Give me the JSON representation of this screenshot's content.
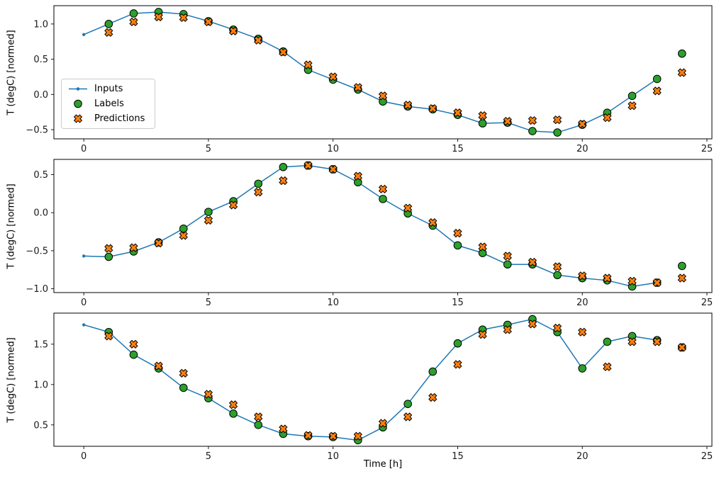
{
  "figure": {
    "xlabel": "Time [h]",
    "ylabel": "T (degC) [normed]",
    "xlim": [
      -1.2,
      25.2
    ],
    "xticks": [
      0,
      5,
      10,
      15,
      20,
      25
    ],
    "colors": {
      "inputs": "#1f77b4",
      "labels": "#2ca02c",
      "predictions": "#ff7f0e",
      "edge": "#000000",
      "spine": "#000000",
      "background": "#ffffff"
    },
    "legend": {
      "items": [
        {
          "label": "Inputs"
        },
        {
          "label": "Labels"
        },
        {
          "label": "Predictions"
        }
      ]
    }
  },
  "chart_data": [
    {
      "type": "line",
      "ylabel": "T (degC) [normed]",
      "ylim": [
        -0.63,
        1.26
      ],
      "yticks": [
        1.0,
        0.5,
        0.0,
        -0.5
      ],
      "series": [
        {
          "name": "Inputs",
          "x": [
            0,
            1,
            2,
            3,
            4,
            5,
            6,
            7,
            8,
            9,
            10,
            11,
            12,
            13,
            14,
            15,
            16,
            17,
            18,
            19,
            20,
            21,
            22,
            23
          ],
          "y": [
            0.85,
            1.0,
            1.15,
            1.17,
            1.14,
            1.04,
            0.92,
            0.79,
            0.61,
            0.35,
            0.21,
            0.07,
            -0.1,
            -0.17,
            -0.21,
            -0.29,
            -0.41,
            -0.4,
            -0.52,
            -0.54,
            -0.43,
            -0.26,
            -0.02,
            0.22
          ]
        },
        {
          "name": "Labels",
          "x": [
            1,
            2,
            3,
            4,
            5,
            6,
            7,
            8,
            9,
            10,
            11,
            12,
            13,
            14,
            15,
            16,
            17,
            18,
            19,
            20,
            21,
            22,
            23,
            24
          ],
          "y": [
            1.0,
            1.15,
            1.17,
            1.14,
            1.04,
            0.92,
            0.79,
            0.61,
            0.35,
            0.21,
            0.07,
            -0.1,
            -0.17,
            -0.21,
            -0.29,
            -0.41,
            -0.4,
            -0.52,
            -0.54,
            -0.43,
            -0.26,
            -0.02,
            0.22,
            0.58
          ]
        },
        {
          "name": "Predictions",
          "x": [
            1,
            2,
            3,
            4,
            5,
            6,
            7,
            8,
            9,
            10,
            11,
            12,
            13,
            14,
            15,
            16,
            17,
            18,
            19,
            20,
            21,
            22,
            23,
            24
          ],
          "y": [
            0.88,
            1.03,
            1.1,
            1.09,
            1.03,
            0.9,
            0.77,
            0.6,
            0.42,
            0.25,
            0.1,
            -0.02,
            -0.15,
            -0.2,
            -0.26,
            -0.3,
            -0.38,
            -0.37,
            -0.36,
            -0.42,
            -0.33,
            -0.16,
            0.05,
            0.31
          ]
        }
      ]
    },
    {
      "type": "line",
      "ylabel": "T (degC) [normed]",
      "ylim": [
        -1.05,
        0.7
      ],
      "yticks": [
        0.5,
        0.0,
        -0.5,
        -1.0
      ],
      "series": [
        {
          "name": "Inputs",
          "x": [
            0,
            1,
            2,
            3,
            4,
            5,
            6,
            7,
            8,
            9,
            10,
            11,
            12,
            13,
            14,
            15,
            16,
            17,
            18,
            19,
            20,
            21,
            22,
            23
          ],
          "y": [
            -0.57,
            -0.58,
            -0.51,
            -0.39,
            -0.21,
            0.01,
            0.15,
            0.38,
            0.6,
            0.62,
            0.57,
            0.4,
            0.18,
            -0.01,
            -0.17,
            -0.43,
            -0.53,
            -0.68,
            -0.68,
            -0.82,
            -0.86,
            -0.89,
            -0.97,
            -0.92
          ]
        },
        {
          "name": "Labels",
          "x": [
            1,
            2,
            3,
            4,
            5,
            6,
            7,
            8,
            9,
            10,
            11,
            12,
            13,
            14,
            15,
            16,
            17,
            18,
            19,
            20,
            21,
            22,
            23,
            24
          ],
          "y": [
            -0.58,
            -0.51,
            -0.39,
            -0.21,
            0.01,
            0.15,
            0.38,
            0.6,
            0.62,
            0.57,
            0.4,
            0.18,
            -0.01,
            -0.17,
            -0.43,
            -0.53,
            -0.68,
            -0.68,
            -0.82,
            -0.86,
            -0.89,
            -0.97,
            -0.92,
            -0.7
          ]
        },
        {
          "name": "Predictions",
          "x": [
            1,
            2,
            3,
            4,
            5,
            6,
            7,
            8,
            9,
            10,
            11,
            12,
            13,
            14,
            15,
            16,
            17,
            18,
            19,
            20,
            21,
            22,
            23,
            24
          ],
          "y": [
            -0.47,
            -0.46,
            -0.4,
            -0.3,
            -0.1,
            0.1,
            0.27,
            0.42,
            0.62,
            0.57,
            0.48,
            0.31,
            0.06,
            -0.13,
            -0.27,
            -0.45,
            -0.57,
            -0.65,
            -0.71,
            -0.83,
            -0.86,
            -0.9,
            -0.92,
            -0.86
          ]
        }
      ]
    },
    {
      "type": "line",
      "ylabel": "T (degC) [normed]",
      "ylim": [
        0.235,
        1.885
      ],
      "yticks": [
        1.5,
        1.0,
        0.5
      ],
      "series": [
        {
          "name": "Inputs",
          "x": [
            0,
            1,
            2,
            3,
            4,
            5,
            6,
            7,
            8,
            9,
            10,
            11,
            12,
            13,
            14,
            15,
            16,
            17,
            18,
            19,
            20,
            21,
            22,
            23
          ],
          "y": [
            1.74,
            1.65,
            1.37,
            1.2,
            0.96,
            0.83,
            0.64,
            0.5,
            0.39,
            0.36,
            0.35,
            0.31,
            0.47,
            0.76,
            1.16,
            1.51,
            1.68,
            1.74,
            1.81,
            1.65,
            1.2,
            1.53,
            1.6,
            1.55
          ]
        },
        {
          "name": "Labels",
          "x": [
            1,
            2,
            3,
            4,
            5,
            6,
            7,
            8,
            9,
            10,
            11,
            12,
            13,
            14,
            15,
            16,
            17,
            18,
            19,
            20,
            21,
            22,
            23,
            24
          ],
          "y": [
            1.65,
            1.37,
            1.2,
            0.96,
            0.83,
            0.64,
            0.5,
            0.39,
            0.36,
            0.35,
            0.31,
            0.47,
            0.76,
            1.16,
            1.51,
            1.68,
            1.74,
            1.81,
            1.65,
            1.2,
            1.53,
            1.6,
            1.55,
            1.46
          ]
        },
        {
          "name": "Predictions",
          "x": [
            1,
            2,
            3,
            4,
            5,
            6,
            7,
            8,
            9,
            10,
            11,
            12,
            13,
            14,
            15,
            16,
            17,
            18,
            19,
            20,
            21,
            22,
            23,
            24
          ],
          "y": [
            1.6,
            1.5,
            1.23,
            1.14,
            0.88,
            0.75,
            0.6,
            0.45,
            0.37,
            0.36,
            0.36,
            0.52,
            0.6,
            0.84,
            1.25,
            1.62,
            1.68,
            1.75,
            1.7,
            1.65,
            1.22,
            1.53,
            1.53,
            1.46
          ]
        }
      ]
    }
  ]
}
